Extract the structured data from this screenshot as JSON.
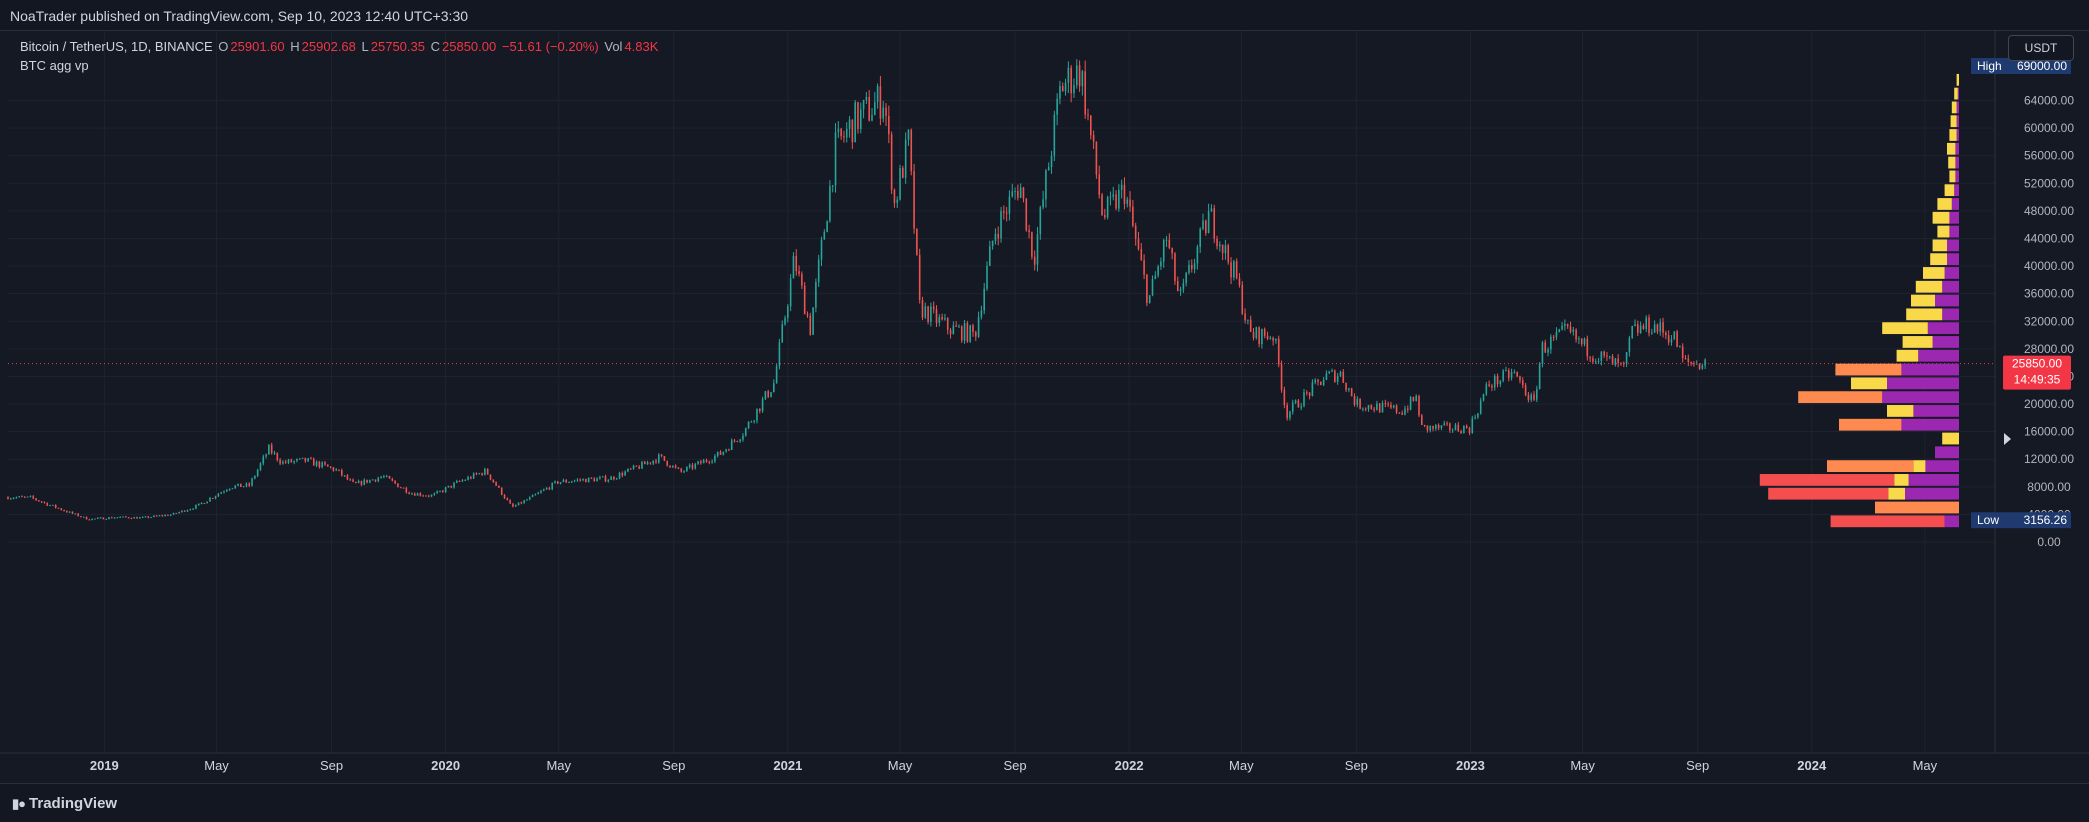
{
  "header": {
    "publish_line": "NoaTrader published on TradingView.com, Sep 10, 2023 12:40 UTC+3:30"
  },
  "legend": {
    "symbol": "Bitcoin / TetherUS, 1D, BINANCE",
    "open_label": "O",
    "open": "25901.60",
    "high_label": "H",
    "high": "25902.68",
    "low_label": "L",
    "low": "25750.35",
    "close_label": "C",
    "close": "25850.00",
    "change": "−51.61 (−0.20%)",
    "vol_label": "Vol",
    "vol": "4.83K",
    "indicator": "BTC agg vp"
  },
  "toolbar": {
    "currency": "USDT"
  },
  "footer": {
    "brand": "TradingView"
  },
  "colors": {
    "background": "#151924",
    "grid": "#1f2330",
    "up": "#26a69a",
    "down": "#ef5350",
    "vp_yellow": "#f9d84a",
    "vp_purple": "#9c27b0",
    "vp_orange": "#ff8a50",
    "vp_red": "#f44e4e",
    "label_blue": "#1e3a6e",
    "price_red": "#f23645"
  },
  "chart_data": {
    "type": "candlestick",
    "series_name": "Bitcoin / TetherUS",
    "y_axis_ticks": [
      0,
      4000,
      8000,
      12000,
      16000,
      20000,
      24000,
      28000,
      32000,
      36000,
      40000,
      44000,
      48000,
      52000,
      56000,
      60000,
      64000
    ],
    "y_axis_labels": [
      "0.00",
      "4000.00",
      "8000.00",
      "12000.00",
      "16000.00",
      "20000.00",
      "24000.00",
      "28000.00",
      "32000.00",
      "36000.00",
      "40000.00",
      "44000.00",
      "48000.00",
      "52000.00",
      "56000.00",
      "60000.00",
      "64000.00"
    ],
    "ylim": [
      -4200,
      71500
    ],
    "x_axis_labels": [
      "2019",
      "May",
      "Sep",
      "2020",
      "May",
      "Sep",
      "2021",
      "May",
      "Sep",
      "2022",
      "May",
      "Sep",
      "2023",
      "May",
      "Sep",
      "2024",
      "May"
    ],
    "x_axis_dates": [
      "2019-01-01",
      "2019-05-01",
      "2019-09-01",
      "2020-01-01",
      "2020-05-01",
      "2020-09-01",
      "2021-01-01",
      "2021-05-01",
      "2021-09-01",
      "2022-01-01",
      "2022-05-01",
      "2022-09-01",
      "2023-01-01",
      "2023-05-01",
      "2023-09-01",
      "2024-01-01",
      "2024-05-01"
    ],
    "x_bold": [
      true,
      false,
      false,
      true,
      false,
      false,
      true,
      false,
      false,
      true,
      false,
      false,
      true,
      false,
      false,
      true,
      false
    ],
    "xlim": [
      "2018-09-20",
      "2024-07-15"
    ],
    "price_path": [
      [
        "2018-09-20",
        6500
      ],
      [
        "2018-10-15",
        6400
      ],
      [
        "2018-11-20",
        4500
      ],
      [
        "2018-12-15",
        3300
      ],
      [
        "2019-01-15",
        3600
      ],
      [
        "2019-02-10",
        3500
      ],
      [
        "2019-03-15",
        4000
      ],
      [
        "2019-04-10",
        5200
      ],
      [
        "2019-05-15",
        8000
      ],
      [
        "2019-06-05",
        8200
      ],
      [
        "2019-06-26",
        13500
      ],
      [
        "2019-07-10",
        11500
      ],
      [
        "2019-08-05",
        11800
      ],
      [
        "2019-09-05",
        10500
      ],
      [
        "2019-09-25",
        8300
      ],
      [
        "2019-10-26",
        9500
      ],
      [
        "2019-11-25",
        7100
      ],
      [
        "2019-12-18",
        6700
      ],
      [
        "2020-01-15",
        8700
      ],
      [
        "2020-02-13",
        10300
      ],
      [
        "2020-03-12",
        5000
      ],
      [
        "2020-04-01",
        6400
      ],
      [
        "2020-04-30",
        8700
      ],
      [
        "2020-05-25",
        9000
      ],
      [
        "2020-06-25",
        9200
      ],
      [
        "2020-07-27",
        11000
      ],
      [
        "2020-08-17",
        12300
      ],
      [
        "2020-09-08",
        10100
      ],
      [
        "2020-10-21",
        12800
      ],
      [
        "2020-11-15",
        16000
      ],
      [
        "2020-12-17",
        23000
      ],
      [
        "2021-01-08",
        41000
      ],
      [
        "2021-01-25",
        31000
      ],
      [
        "2021-02-21",
        57000
      ],
      [
        "2021-03-13",
        61000
      ],
      [
        "2021-04-14",
        64500
      ],
      [
        "2021-04-25",
        49000
      ],
      [
        "2021-05-10",
        58000
      ],
      [
        "2021-05-22",
        34000
      ],
      [
        "2021-06-22",
        31000
      ],
      [
        "2021-07-20",
        30000
      ],
      [
        "2021-08-10",
        45000
      ],
      [
        "2021-09-06",
        52000
      ],
      [
        "2021-09-21",
        41000
      ],
      [
        "2021-10-20",
        66000
      ],
      [
        "2021-11-10",
        68500
      ],
      [
        "2021-12-04",
        47000
      ],
      [
        "2021-12-27",
        51000
      ],
      [
        "2022-01-22",
        35000
      ],
      [
        "2022-02-10",
        44000
      ],
      [
        "2022-02-24",
        35000
      ],
      [
        "2022-03-28",
        47500
      ],
      [
        "2022-04-26",
        38000
      ],
      [
        "2022-05-10",
        30000
      ],
      [
        "2022-06-05",
        30000
      ],
      [
        "2022-06-18",
        18500
      ],
      [
        "2022-07-30",
        24000
      ],
      [
        "2022-08-15",
        24400
      ],
      [
        "2022-09-01",
        20000
      ],
      [
        "2022-10-20",
        19000
      ],
      [
        "2022-11-05",
        21000
      ],
      [
        "2022-11-09",
        16500
      ],
      [
        "2022-12-31",
        16500
      ],
      [
        "2023-01-20",
        22800
      ],
      [
        "2023-02-16",
        24500
      ],
      [
        "2023-03-10",
        20000
      ],
      [
        "2023-03-18",
        28000
      ],
      [
        "2023-04-14",
        30500
      ],
      [
        "2023-05-10",
        27500
      ],
      [
        "2023-06-15",
        25000
      ],
      [
        "2023-06-22",
        30400
      ],
      [
        "2023-07-13",
        31500
      ],
      [
        "2023-08-08",
        29500
      ],
      [
        "2023-08-17",
        26000
      ],
      [
        "2023-09-10",
        25850
      ]
    ],
    "volume_profile": {
      "bin_size": 2000,
      "bins": [
        {
          "low": 2000,
          "yellow": 0,
          "orange": 95,
          "purple": 12
        },
        {
          "low": 4000,
          "yellow": 0,
          "orange": 70,
          "purple": 0
        },
        {
          "low": 6000,
          "yellow": 14,
          "orange": 100,
          "purple": 45
        },
        {
          "low": 8000,
          "yellow": 12,
          "orange": 112,
          "purple": 42
        },
        {
          "low": 10000,
          "yellow": 10,
          "orange": 72,
          "purple": 28
        },
        {
          "low": 12000,
          "yellow": 0,
          "orange": 0,
          "purple": 20
        },
        {
          "low": 14000,
          "yellow": 14,
          "orange": 0,
          "purple": 0
        },
        {
          "low": 16000,
          "yellow": 0,
          "orange": 52,
          "purple": 48
        },
        {
          "low": 18000,
          "yellow": 22,
          "orange": 0,
          "purple": 38
        },
        {
          "low": 20000,
          "yellow": 0,
          "orange": 70,
          "purple": 64
        },
        {
          "low": 22000,
          "yellow": 30,
          "orange": 0,
          "purple": 60
        },
        {
          "low": 24000,
          "yellow": 0,
          "orange": 55,
          "purple": 48
        },
        {
          "low": 26000,
          "yellow": 18,
          "orange": 0,
          "purple": 34
        },
        {
          "low": 28000,
          "yellow": 25,
          "orange": 0,
          "purple": 22
        },
        {
          "low": 30000,
          "yellow": 38,
          "orange": 0,
          "purple": 26
        },
        {
          "low": 32000,
          "yellow": 30,
          "orange": 0,
          "purple": 14
        },
        {
          "low": 34000,
          "yellow": 20,
          "orange": 0,
          "purple": 20
        },
        {
          "low": 36000,
          "yellow": 22,
          "orange": 0,
          "purple": 14
        },
        {
          "low": 38000,
          "yellow": 18,
          "orange": 0,
          "purple": 12
        },
        {
          "low": 40000,
          "yellow": 14,
          "orange": 0,
          "purple": 10
        },
        {
          "low": 42000,
          "yellow": 12,
          "orange": 0,
          "purple": 10
        },
        {
          "low": 44000,
          "yellow": 10,
          "orange": 0,
          "purple": 8
        },
        {
          "low": 46000,
          "yellow": 14,
          "orange": 0,
          "purple": 8
        },
        {
          "low": 48000,
          "yellow": 12,
          "orange": 0,
          "purple": 6
        },
        {
          "low": 50000,
          "yellow": 8,
          "orange": 0,
          "purple": 4
        },
        {
          "low": 52000,
          "yellow": 5,
          "orange": 0,
          "purple": 3
        },
        {
          "low": 54000,
          "yellow": 6,
          "orange": 0,
          "purple": 3
        },
        {
          "low": 56000,
          "yellow": 7,
          "orange": 0,
          "purple": 3
        },
        {
          "low": 58000,
          "yellow": 6,
          "orange": 0,
          "purple": 2
        },
        {
          "low": 60000,
          "yellow": 5,
          "orange": 0,
          "purple": 2
        },
        {
          "low": 62000,
          "yellow": 4,
          "orange": 0,
          "purple": 2
        },
        {
          "low": 64000,
          "yellow": 3,
          "orange": 0,
          "purple": 1
        },
        {
          "low": 66000,
          "yellow": 2,
          "orange": 0,
          "purple": 0
        }
      ]
    },
    "current_price": 25850,
    "current_price_label": "25850.00",
    "countdown": "14:49:35",
    "high": 69000,
    "high_tag": "High",
    "high_label": "69000.00",
    "low": 3156.26,
    "low_tag": "Low",
    "low_label": "3156.26",
    "grid": true
  }
}
